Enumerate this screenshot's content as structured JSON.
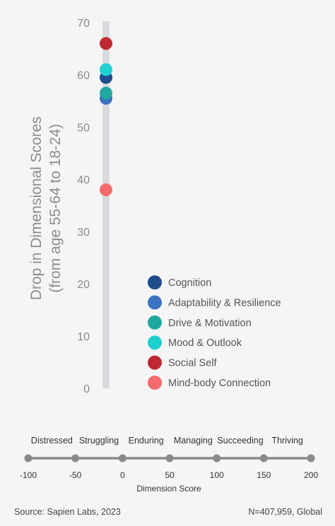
{
  "chart_data": [
    {
      "type": "scatter",
      "title": "",
      "ylabel": [
        "Drop in Dimensional Scores",
        "(from age 55-64 to 18-24)"
      ],
      "ylim": [
        0,
        70
      ],
      "yticks": [
        0,
        10,
        20,
        30,
        40,
        50,
        60,
        70
      ],
      "series": [
        {
          "name": "Cognition",
          "value": 59.5,
          "color": "#1f4e8c"
        },
        {
          "name": "Adaptability & Resilience",
          "value": 55.5,
          "color": "#3a73c0"
        },
        {
          "name": "Drive & Motivation",
          "value": 56.5,
          "color": "#1fa8a1"
        },
        {
          "name": "Mood & Outlook",
          "value": 61.0,
          "color": "#21cfd1"
        },
        {
          "name": "Social Self",
          "value": 66.0,
          "color": "#c0282f"
        },
        {
          "name": "Mind-body Connection",
          "value": 38.0,
          "color": "#f46b6b"
        }
      ],
      "legend_position": "right"
    },
    {
      "type": "scale",
      "xlabel": "Dimension Score",
      "xlim": [
        -100,
        200
      ],
      "xticks": [
        -100,
        -50,
        0,
        50,
        100,
        150,
        200
      ],
      "bands": [
        "Distressed",
        "Struggling",
        "Enduring",
        "Managing",
        "Succeeding",
        "Thriving"
      ]
    }
  ],
  "footer": {
    "source": "Source: Sapien Labs, 2023",
    "sample": "N=407,959, Global"
  }
}
